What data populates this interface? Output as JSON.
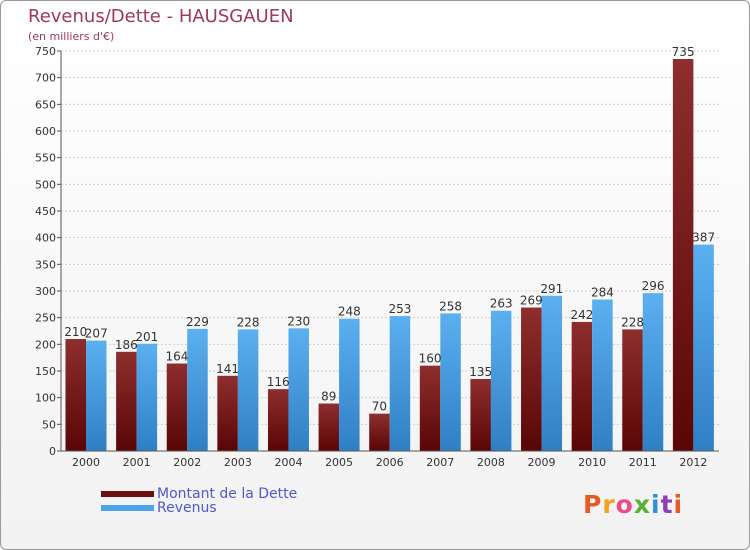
{
  "chart_data": {
    "type": "bar",
    "title": "Revenus/Dette - HAUSGAUEN",
    "subtitle": "(en milliers d'€)",
    "categories": [
      "2000",
      "2001",
      "2002",
      "2003",
      "2004",
      "2005",
      "2006",
      "2007",
      "2008",
      "2009",
      "2010",
      "2011",
      "2012"
    ],
    "series": [
      {
        "name": "Montant de la Dette",
        "color": "#7a1a1a",
        "values": [
          210,
          186,
          164,
          141,
          116,
          89,
          70,
          160,
          135,
          269,
          242,
          228,
          735
        ]
      },
      {
        "name": "Revenus",
        "color": "#4da3e8",
        "values": [
          207,
          201,
          229,
          228,
          230,
          248,
          253,
          258,
          263,
          291,
          284,
          296,
          387
        ]
      }
    ],
    "ylim": [
      0,
      750
    ],
    "yticks": [
      0,
      50,
      100,
      150,
      200,
      250,
      300,
      350,
      400,
      450,
      500,
      550,
      600,
      650,
      700,
      750
    ],
    "grid": true,
    "legend": "bottom-left"
  },
  "legend": {
    "items": [
      {
        "label": "Montant de la Dette",
        "color": "#6b0f0f"
      },
      {
        "label": "Revenus",
        "color": "#4da3e8"
      }
    ]
  },
  "logo": {
    "parts": [
      "P",
      "r",
      "o",
      "x",
      "i",
      "t",
      "i"
    ]
  }
}
